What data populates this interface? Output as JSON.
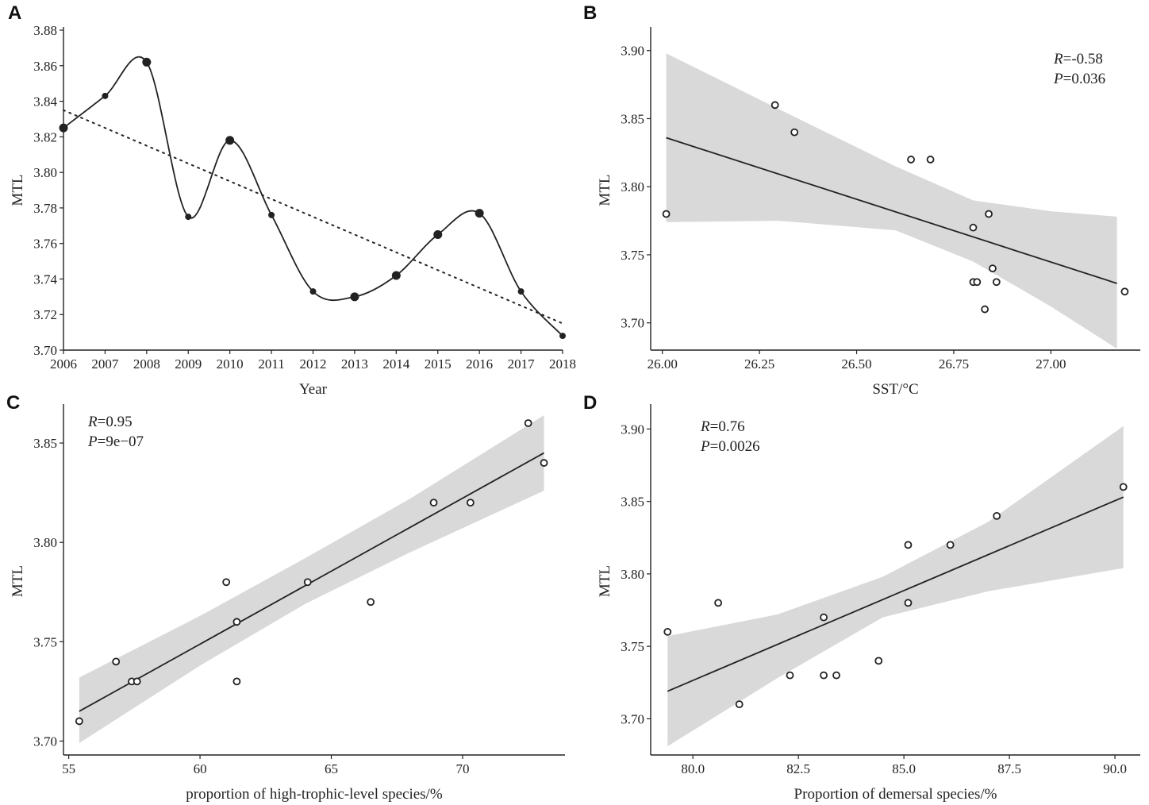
{
  "colors": {
    "ink": "#222222",
    "band": "#d9d9d9",
    "background": "#ffffff"
  },
  "chart_data": [
    {
      "panel": "A",
      "type": "line",
      "xlabel": "Year",
      "ylabel": "MTL",
      "x": [
        2006,
        2007,
        2008,
        2009,
        2010,
        2011,
        2012,
        2013,
        2014,
        2015,
        2016,
        2017,
        2018
      ],
      "x_tick_labels": [
        "2006",
        "2007",
        "2008",
        "2009",
        "2010",
        "2011",
        "2012",
        "2013",
        "2014",
        "2015",
        "2016",
        "2017",
        "2018"
      ],
      "values": [
        3.825,
        3.843,
        3.862,
        3.775,
        3.818,
        3.776,
        3.733,
        3.73,
        3.742,
        3.765,
        3.777,
        3.733,
        3.708
      ],
      "point_size": [
        "large",
        "small",
        "large",
        "small",
        "large",
        "small",
        "small",
        "large",
        "large",
        "large",
        "large",
        "small",
        "small"
      ],
      "trend": {
        "style": "dotted",
        "y_start": 3.835,
        "y_end": 3.715
      },
      "xlim": [
        2006,
        2018
      ],
      "ylim": [
        3.7,
        3.88
      ],
      "y_ticks": [
        3.7,
        3.72,
        3.74,
        3.76,
        3.78,
        3.8,
        3.82,
        3.84,
        3.86,
        3.88
      ],
      "y_tick_labels": [
        "3.70",
        "3.72",
        "3.74",
        "3.76",
        "3.78",
        "3.80",
        "3.82",
        "3.84",
        "3.86",
        "3.88"
      ]
    },
    {
      "panel": "B",
      "type": "scatter",
      "xlabel": "SST/°C",
      "ylabel": "MTL",
      "points": [
        {
          "x": 26.01,
          "y": 3.78
        },
        {
          "x": 26.29,
          "y": 3.86
        },
        {
          "x": 26.34,
          "y": 3.84
        },
        {
          "x": 26.64,
          "y": 3.82
        },
        {
          "x": 26.69,
          "y": 3.82
        },
        {
          "x": 26.8,
          "y": 3.77
        },
        {
          "x": 26.84,
          "y": 3.78
        },
        {
          "x": 26.85,
          "y": 3.74
        },
        {
          "x": 26.8,
          "y": 3.73
        },
        {
          "x": 26.81,
          "y": 3.73
        },
        {
          "x": 26.86,
          "y": 3.73
        },
        {
          "x": 26.83,
          "y": 3.71
        },
        {
          "x": 27.19,
          "y": 3.723
        }
      ],
      "fit": {
        "x": [
          26.01,
          27.17
        ],
        "y": [
          3.836,
          3.729
        ]
      },
      "band": {
        "x": [
          26.01,
          26.3,
          26.6,
          26.8,
          27.0,
          27.17
        ],
        "upper": [
          3.898,
          3.857,
          3.815,
          3.79,
          3.782,
          3.778
        ],
        "lower": [
          3.774,
          3.775,
          3.768,
          3.745,
          3.712,
          3.681
        ]
      },
      "annotation": {
        "r_label": "R",
        "r_value": "=-0.58",
        "p_label": "P",
        "p_value": "=0.036"
      },
      "xlim": [
        25.97,
        27.23
      ],
      "ylim": [
        3.68,
        3.915
      ],
      "x_ticks": [
        26.0,
        26.25,
        26.5,
        26.75,
        27.0
      ],
      "x_tick_labels": [
        "26.00",
        "26.25",
        "26.50",
        "26.75",
        "27.00"
      ],
      "y_ticks": [
        3.7,
        3.75,
        3.8,
        3.85,
        3.9
      ],
      "y_tick_labels": [
        "3.70",
        "3.75",
        "3.80",
        "3.85",
        "3.90"
      ]
    },
    {
      "panel": "C",
      "type": "scatter",
      "xlabel": "proportion of high-trophic-level species/%",
      "ylabel": "MTL",
      "points": [
        {
          "x": 55.4,
          "y": 3.71
        },
        {
          "x": 56.8,
          "y": 3.74
        },
        {
          "x": 57.4,
          "y": 3.73
        },
        {
          "x": 57.6,
          "y": 3.73
        },
        {
          "x": 61.0,
          "y": 3.78
        },
        {
          "x": 61.4,
          "y": 3.76
        },
        {
          "x": 61.4,
          "y": 3.73
        },
        {
          "x": 64.1,
          "y": 3.78
        },
        {
          "x": 66.5,
          "y": 3.77
        },
        {
          "x": 68.9,
          "y": 3.82
        },
        {
          "x": 70.3,
          "y": 3.82
        },
        {
          "x": 72.5,
          "y": 3.86
        },
        {
          "x": 73.1,
          "y": 3.84
        }
      ],
      "fit": {
        "x": [
          55.4,
          73.1
        ],
        "y": [
          3.715,
          3.845
        ]
      },
      "band": {
        "x": [
          55.4,
          60,
          64,
          68,
          73.1
        ],
        "upper": [
          3.732,
          3.763,
          3.792,
          3.822,
          3.864
        ],
        "lower": [
          3.699,
          3.738,
          3.769,
          3.795,
          3.826
        ]
      },
      "annotation": {
        "r_label": "R",
        "r_value": "=0.95",
        "p_label": "P",
        "p_value": "=9e−07"
      },
      "xlim": [
        54.8,
        73.9
      ],
      "ylim": [
        3.693,
        3.868
      ],
      "x_ticks": [
        55,
        60,
        65,
        70
      ],
      "x_tick_labels": [
        "55",
        "60",
        "65",
        "70"
      ],
      "y_ticks": [
        3.7,
        3.75,
        3.8,
        3.85
      ],
      "y_tick_labels": [
        "3.70",
        "3.75",
        "3.80",
        "3.85"
      ]
    },
    {
      "panel": "D",
      "type": "scatter",
      "xlabel": "Proportion of demersal species/%",
      "ylabel": "MTL",
      "points": [
        {
          "x": 79.4,
          "y": 3.76
        },
        {
          "x": 80.6,
          "y": 3.78
        },
        {
          "x": 81.1,
          "y": 3.71
        },
        {
          "x": 82.3,
          "y": 3.73
        },
        {
          "x": 83.1,
          "y": 3.77
        },
        {
          "x": 83.1,
          "y": 3.73
        },
        {
          "x": 83.4,
          "y": 3.73
        },
        {
          "x": 84.4,
          "y": 3.74
        },
        {
          "x": 85.1,
          "y": 3.82
        },
        {
          "x": 85.1,
          "y": 3.78
        },
        {
          "x": 86.1,
          "y": 3.82
        },
        {
          "x": 87.2,
          "y": 3.84
        },
        {
          "x": 90.2,
          "y": 3.86
        }
      ],
      "fit": {
        "x": [
          79.4,
          90.2
        ],
        "y": [
          3.719,
          3.853
        ]
      },
      "band": {
        "x": [
          79.4,
          82,
          84.5,
          87,
          90.2
        ],
        "upper": [
          3.757,
          3.772,
          3.798,
          3.836,
          3.902
        ],
        "lower": [
          3.681,
          3.728,
          3.77,
          3.788,
          3.804
        ]
      },
      "annotation": {
        "r_label": "R",
        "r_value": "=0.76",
        "p_label": "P",
        "p_value": "=0.0026"
      },
      "xlim": [
        79.0,
        90.6
      ],
      "ylim": [
        3.675,
        3.915
      ],
      "x_ticks": [
        80.0,
        82.5,
        85.0,
        87.5,
        90.0
      ],
      "x_tick_labels": [
        "80.0",
        "82.5",
        "85.0",
        "87.5",
        "90.0"
      ],
      "y_ticks": [
        3.7,
        3.75,
        3.8,
        3.85,
        3.9
      ],
      "y_tick_labels": [
        "3.70",
        "3.75",
        "3.80",
        "3.85",
        "3.90"
      ]
    }
  ]
}
